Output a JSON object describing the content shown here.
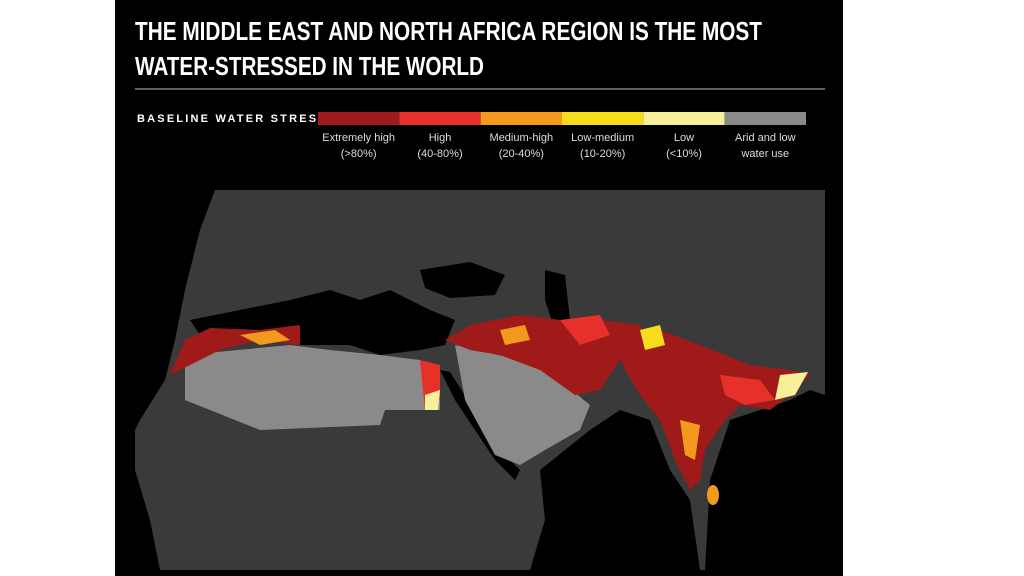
{
  "header": {
    "title_lines": [
      "THE MIDDLE EAST AND NORTH AFRICA REGION IS THE MOST",
      "WATER-STRESSED IN THE WORLD"
    ]
  },
  "legend": {
    "title": "BASELINE WATER STRESS",
    "items": [
      {
        "label": "Extremely high",
        "range": "(>80%)",
        "color": "#a01a1a"
      },
      {
        "label": "High",
        "range": "(40-80%)",
        "color": "#e8302a"
      },
      {
        "label": "Medium-high",
        "range": "(20-40%)",
        "color": "#f39a1e"
      },
      {
        "label": "Low-medium",
        "range": "(10-20%)",
        "color": "#f7dc1c"
      },
      {
        "label": "Low",
        "range": "(<10%)",
        "color": "#f7ef9a"
      },
      {
        "label": "Arid and low",
        "range": "water use",
        "color": "#8a8a8a"
      }
    ]
  }
}
